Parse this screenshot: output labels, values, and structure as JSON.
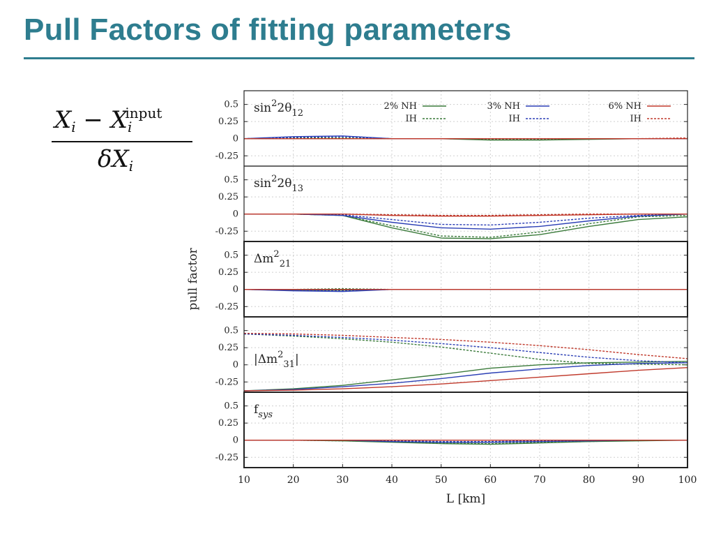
{
  "slide": {
    "title": "Pull Factors of fitting parameters"
  },
  "formula": {
    "numerator_lhs": "X",
    "numerator_lhs_sub": "i",
    "minus": " − ",
    "numerator_rhs": "X",
    "numerator_rhs_sub": "i",
    "numerator_rhs_sup": "input",
    "denominator": "δX",
    "denominator_sub": "i"
  },
  "colors": {
    "title": "#2e7d8f",
    "nh2": "#3a7a3a",
    "nh3": "#2b3fb5",
    "nh6": "#c0392b"
  },
  "chart_data": {
    "type": "line",
    "xlabel": "L [km]",
    "ylabel": "pull factor",
    "xlim": [
      10,
      100
    ],
    "xticks": [
      10,
      20,
      30,
      40,
      50,
      60,
      70,
      80,
      90,
      100
    ],
    "ylim": [
      -0.4,
      0.7
    ],
    "yticks": [
      0.5,
      0.25,
      0,
      -0.25
    ],
    "ytick_labels": [
      "0.5",
      "0.25",
      "0",
      "-0.25"
    ],
    "grid": true,
    "legend": {
      "placement": "top-right of first panel",
      "entries": [
        {
          "nh": "2% NH",
          "ih": "IH",
          "color": "#3a7a3a"
        },
        {
          "nh": "3% NH",
          "ih": "IH",
          "color": "#2b3fb5"
        },
        {
          "nh": "6% NH",
          "ih": "IH",
          "color": "#c0392b"
        }
      ]
    },
    "x": [
      10,
      20,
      30,
      40,
      50,
      60,
      70,
      80,
      90,
      100
    ],
    "panels": [
      {
        "label": "sin²2θ₁₂",
        "series": [
          {
            "name": "2% NH",
            "style": "solid",
            "color": "#3a7a3a",
            "values": [
              0,
              0,
              0,
              0,
              0,
              -0.02,
              -0.02,
              -0.01,
              0,
              0
            ]
          },
          {
            "name": "2% IH",
            "style": "dashed",
            "color": "#3a7a3a",
            "values": [
              0,
              0.01,
              0.01,
              0,
              0,
              -0.01,
              -0.01,
              0,
              0,
              0
            ]
          },
          {
            "name": "3% NH",
            "style": "solid",
            "color": "#2b3fb5",
            "values": [
              0,
              0.03,
              0.04,
              0,
              0,
              0,
              0,
              0,
              0,
              0
            ]
          },
          {
            "name": "3% IH",
            "style": "dashed",
            "color": "#2b3fb5",
            "values": [
              0,
              0.02,
              0.03,
              0,
              0,
              0,
              0,
              0,
              0,
              0
            ]
          },
          {
            "name": "6% NH",
            "style": "solid",
            "color": "#c0392b",
            "values": [
              0,
              0,
              0,
              0,
              0,
              0,
              0,
              0,
              0,
              0
            ]
          },
          {
            "name": "6% IH",
            "style": "dashed",
            "color": "#c0392b",
            "values": [
              0,
              0,
              0,
              0,
              0,
              0,
              0,
              0,
              0,
              0.01
            ]
          }
        ]
      },
      {
        "label": "sin²2θ₁₃",
        "series": [
          {
            "name": "2% NH",
            "style": "solid",
            "color": "#3a7a3a",
            "values": [
              0,
              0,
              -0.02,
              -0.2,
              -0.35,
              -0.36,
              -0.3,
              -0.18,
              -0.08,
              -0.04
            ]
          },
          {
            "name": "2% IH",
            "style": "dashed",
            "color": "#3a7a3a",
            "values": [
              0,
              0,
              -0.02,
              -0.17,
              -0.32,
              -0.34,
              -0.26,
              -0.14,
              -0.04,
              -0.02
            ]
          },
          {
            "name": "3% NH",
            "style": "solid",
            "color": "#2b3fb5",
            "values": [
              0,
              0,
              -0.02,
              -0.12,
              -0.2,
              -0.22,
              -0.18,
              -0.1,
              -0.03,
              0
            ]
          },
          {
            "name": "3% IH",
            "style": "dashed",
            "color": "#2b3fb5",
            "values": [
              0,
              0,
              -0.01,
              -0.08,
              -0.15,
              -0.16,
              -0.12,
              -0.06,
              -0.02,
              0
            ]
          },
          {
            "name": "6% NH",
            "style": "solid",
            "color": "#c0392b",
            "values": [
              0,
              0,
              0,
              -0.02,
              -0.03,
              -0.03,
              -0.02,
              -0.01,
              0,
              0
            ]
          },
          {
            "name": "6% IH",
            "style": "dashed",
            "color": "#c0392b",
            "values": [
              0,
              0,
              0,
              -0.01,
              -0.02,
              -0.02,
              -0.01,
              0,
              0,
              0
            ]
          }
        ]
      },
      {
        "label": "Δm²₂₁",
        "series": [
          {
            "name": "2% NH",
            "style": "solid",
            "color": "#3a7a3a",
            "values": [
              0,
              -0.01,
              -0.01,
              0,
              0,
              0,
              0,
              0,
              0,
              0
            ]
          },
          {
            "name": "2% IH",
            "style": "dashed",
            "color": "#3a7a3a",
            "values": [
              0,
              0,
              0.01,
              0,
              0,
              0,
              0,
              0,
              0,
              0
            ]
          },
          {
            "name": "3% NH",
            "style": "solid",
            "color": "#2b3fb5",
            "values": [
              0,
              -0.02,
              -0.03,
              0,
              0,
              0,
              0,
              0,
              0,
              0
            ]
          },
          {
            "name": "3% IH",
            "style": "dashed",
            "color": "#2b3fb5",
            "values": [
              0,
              -0.01,
              -0.02,
              0,
              0,
              0,
              0,
              0,
              0,
              0
            ]
          },
          {
            "name": "6% NH",
            "style": "solid",
            "color": "#c0392b",
            "values": [
              0,
              0,
              0,
              0,
              0,
              0,
              0,
              0,
              0,
              0
            ]
          },
          {
            "name": "6% IH",
            "style": "dashed",
            "color": "#c0392b",
            "values": [
              0,
              0,
              0,
              0,
              0,
              0,
              0,
              0,
              0,
              0
            ]
          }
        ]
      },
      {
        "label": "|Δm²₃₁|",
        "series": [
          {
            "name": "2% NH",
            "style": "solid",
            "color": "#3a7a3a",
            "values": [
              -0.38,
              -0.35,
              -0.3,
              -0.22,
              -0.14,
              -0.05,
              0.0,
              0.03,
              0.04,
              0.05
            ]
          },
          {
            "name": "2% IH",
            "style": "dashed",
            "color": "#3a7a3a",
            "values": [
              0.45,
              0.42,
              0.38,
              0.33,
              0.26,
              0.17,
              0.08,
              0.02,
              0.01,
              0.0
            ]
          },
          {
            "name": "3% NH",
            "style": "solid",
            "color": "#2b3fb5",
            "values": [
              -0.38,
              -0.36,
              -0.32,
              -0.27,
              -0.2,
              -0.12,
              -0.06,
              -0.01,
              0.02,
              0.03
            ]
          },
          {
            "name": "3% IH",
            "style": "dashed",
            "color": "#2b3fb5",
            "values": [
              0.45,
              0.43,
              0.4,
              0.36,
              0.31,
              0.25,
              0.18,
              0.11,
              0.06,
              0.03
            ]
          },
          {
            "name": "6% NH",
            "style": "solid",
            "color": "#c0392b",
            "values": [
              -0.38,
              -0.37,
              -0.35,
              -0.32,
              -0.28,
              -0.23,
              -0.18,
              -0.13,
              -0.08,
              -0.04
            ]
          },
          {
            "name": "6% IH",
            "style": "dashed",
            "color": "#c0392b",
            "values": [
              0.46,
              0.45,
              0.43,
              0.4,
              0.37,
              0.33,
              0.28,
              0.22,
              0.15,
              0.09
            ]
          }
        ]
      },
      {
        "label": "f_sys",
        "series": [
          {
            "name": "2% NH",
            "style": "solid",
            "color": "#3a7a3a",
            "values": [
              0,
              0,
              -0.01,
              -0.03,
              -0.05,
              -0.06,
              -0.04,
              -0.02,
              -0.01,
              0
            ]
          },
          {
            "name": "2% IH",
            "style": "dashed",
            "color": "#3a7a3a",
            "values": [
              0,
              0,
              -0.01,
              -0.02,
              -0.04,
              -0.05,
              -0.03,
              -0.02,
              0,
              0
            ]
          },
          {
            "name": "3% NH",
            "style": "solid",
            "color": "#2b3fb5",
            "values": [
              0,
              0,
              0,
              -0.02,
              -0.03,
              -0.03,
              -0.02,
              -0.01,
              0,
              0
            ]
          },
          {
            "name": "3% IH",
            "style": "dashed",
            "color": "#2b3fb5",
            "values": [
              0,
              0,
              0,
              -0.01,
              -0.02,
              -0.02,
              -0.01,
              0,
              0,
              0
            ]
          },
          {
            "name": "6% NH",
            "style": "solid",
            "color": "#c0392b",
            "values": [
              0,
              0,
              0,
              0,
              0,
              0,
              0,
              0,
              0,
              0
            ]
          },
          {
            "name": "6% IH",
            "style": "dashed",
            "color": "#c0392b",
            "values": [
              0,
              0,
              0,
              0,
              0,
              0,
              0,
              0,
              0,
              0
            ]
          }
        ]
      }
    ]
  }
}
